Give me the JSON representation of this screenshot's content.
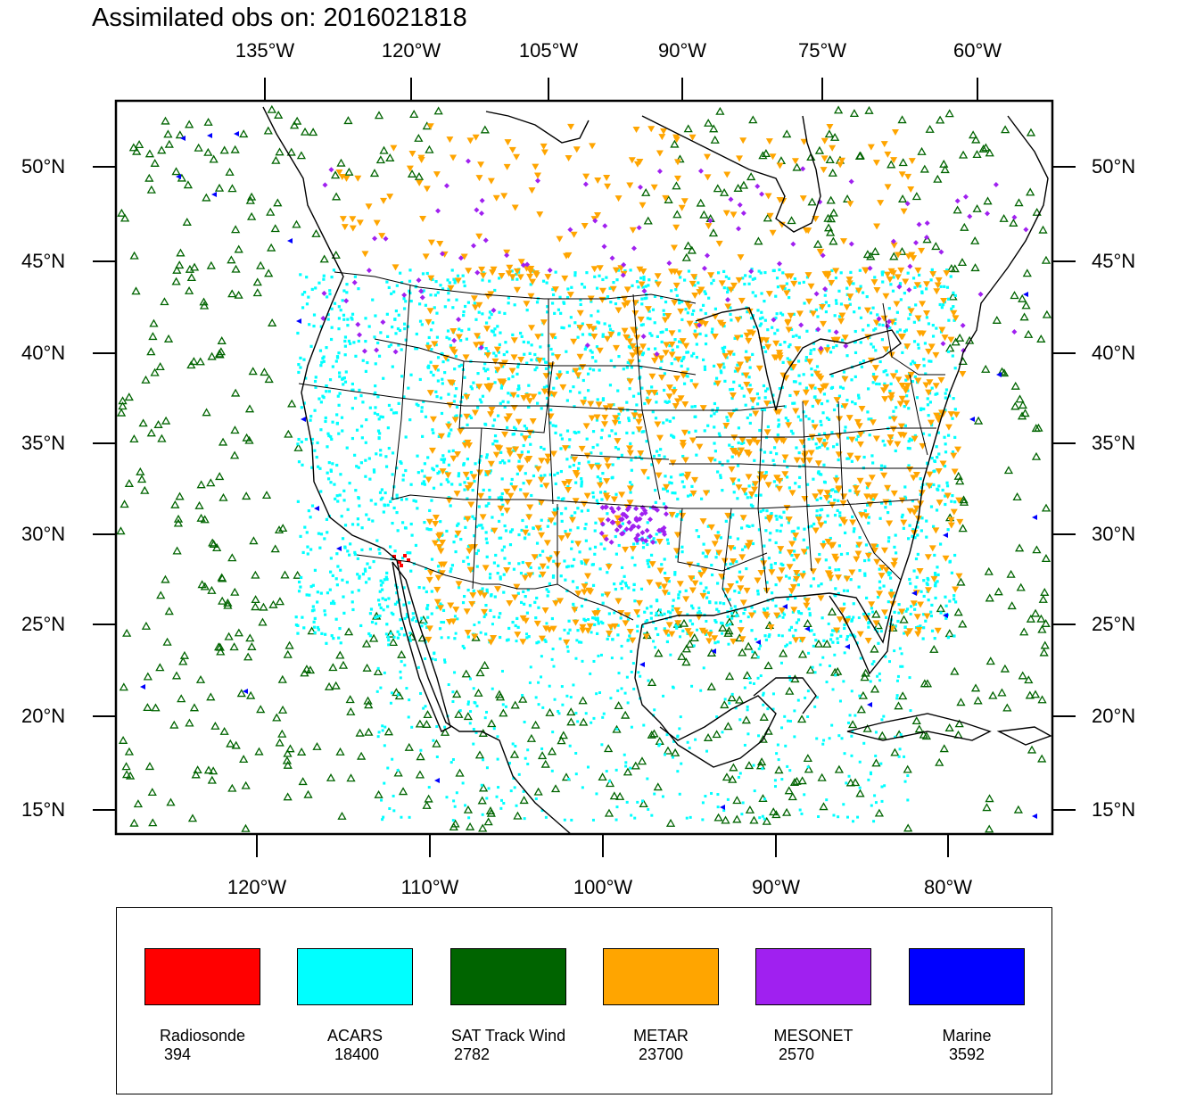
{
  "title": "Assimilated obs on: 2016021818",
  "axes": {
    "top_ticks": [
      "135°W",
      "120°W",
      "105°W",
      "90°W",
      "75°W",
      "60°W"
    ],
    "bottom_ticks": [
      "120°W",
      "110°W",
      "100°W",
      "90°W",
      "80°W"
    ],
    "left_ticks": [
      "50°N",
      "45°N",
      "40°N",
      "35°N",
      "30°N",
      "25°N",
      "20°N",
      "15°N"
    ],
    "right_ticks": [
      "50°N",
      "45°N",
      "40°N",
      "35°N",
      "30°N",
      "25°N",
      "20°N",
      "15°N"
    ]
  },
  "legend": [
    {
      "label": "Radiosonde",
      "count": "394",
      "color": "#ff0000"
    },
    {
      "label": "ACARS",
      "count": "18400",
      "color": "#00ffff"
    },
    {
      "label": "SAT Track Wind",
      "count": "2782",
      "color": "#006400"
    },
    {
      "label": "METAR",
      "count": "23700",
      "color": "#ffa500"
    },
    {
      "label": "MESONET",
      "count": "2570",
      "color": "#a020f0"
    },
    {
      "label": "Marine",
      "count": "3592",
      "color": "#0000ff"
    }
  ]
}
